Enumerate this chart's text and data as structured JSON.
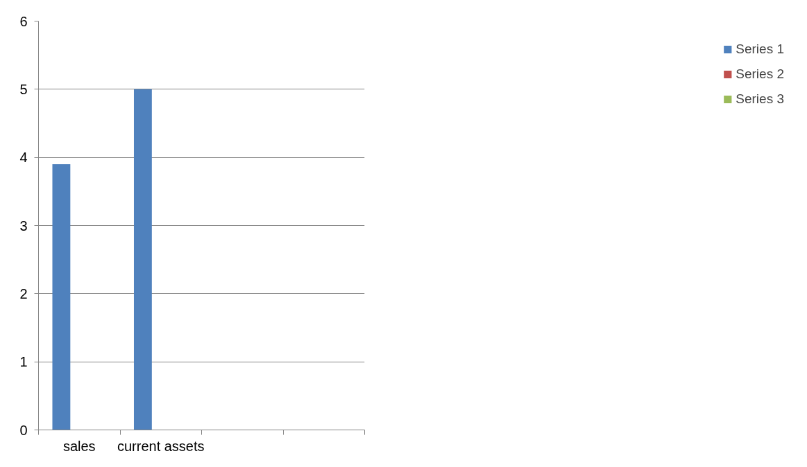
{
  "chart_data": {
    "type": "bar",
    "categories": [
      "sales",
      "current assets",
      null,
      null
    ],
    "series": [
      {
        "name": "Series 1",
        "color": "#4f81bd",
        "values": [
          3.9,
          5,
          null,
          null
        ]
      },
      {
        "name": "Series 2",
        "color": "#c0504d",
        "values": [
          null,
          null,
          null,
          null
        ]
      },
      {
        "name": "Series 3",
        "color": "#9bbb59",
        "values": [
          null,
          null,
          null,
          null
        ]
      }
    ],
    "ylim": [
      0,
      6
    ],
    "yticks": [
      0,
      1,
      2,
      3,
      4,
      5,
      6
    ],
    "grid": "y",
    "legend": "right"
  }
}
